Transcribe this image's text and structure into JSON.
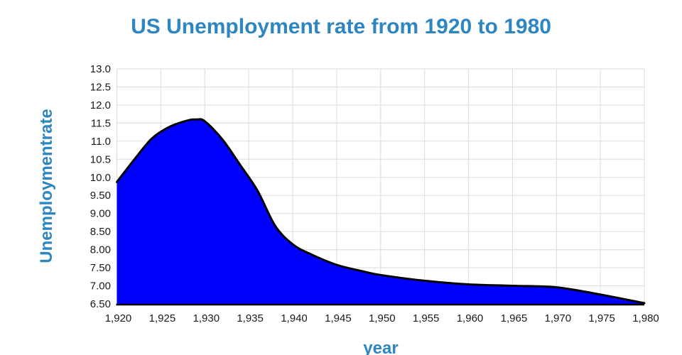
{
  "chart_data": {
    "type": "area",
    "title": "US Unemployment rate from 1920 to 1980",
    "xlabel": "year",
    "ylabel": "Unemploymentrate",
    "x_range": [
      1920,
      1980
    ],
    "y_range": [
      6.5,
      13.0
    ],
    "grid": "on",
    "legend": "none",
    "series": [
      {
        "x": [
          1920,
          1922,
          1924,
          1926,
          1928,
          1929,
          1930,
          1932,
          1934,
          1936,
          1938,
          1940,
          1942,
          1945,
          1948,
          1950,
          1955,
          1960,
          1965,
          1970,
          1975,
          1980
        ],
        "y": [
          9.87,
          10.5,
          11.08,
          11.4,
          11.57,
          11.6,
          11.55,
          11.05,
          10.35,
          9.63,
          8.66,
          8.15,
          7.88,
          7.58,
          7.4,
          7.3,
          7.14,
          7.04,
          7.0,
          6.96,
          6.76,
          6.52
        ]
      }
    ],
    "x_ticks": {
      "values": [
        1920,
        1925,
        1930,
        1935,
        1940,
        1945,
        1950,
        1955,
        1960,
        1965,
        1970,
        1975,
        1980
      ],
      "labels": [
        "1,920",
        "1,925",
        "1,930",
        "1,935",
        "1,940",
        "1,945",
        "1,950",
        "1,955",
        "1,960",
        "1,965",
        "1,970",
        "1,975",
        "1,980"
      ]
    },
    "y_ticks": {
      "values": [
        13.0,
        12.5,
        12.0,
        11.5,
        11.0,
        10.5,
        10.0,
        9.5,
        9.0,
        8.5,
        8.0,
        7.5,
        7.0,
        6.5
      ],
      "labels": [
        "13.0",
        "12.5",
        "12.0",
        "11.5",
        "11.0",
        "10.5",
        "10.0",
        "9.50",
        "9.00",
        "8.50",
        "8.00",
        "7.50",
        "7.00",
        "6.50"
      ]
    },
    "colors": {
      "area_fill": "#0000ff",
      "line": "#000000",
      "title": "#2e86c1",
      "axis_title": "#2e86c1",
      "tick_text": "#1a1a1a",
      "gridline": "#e0e0e0",
      "axis_line": "#000000",
      "background": "#ffffff"
    }
  }
}
